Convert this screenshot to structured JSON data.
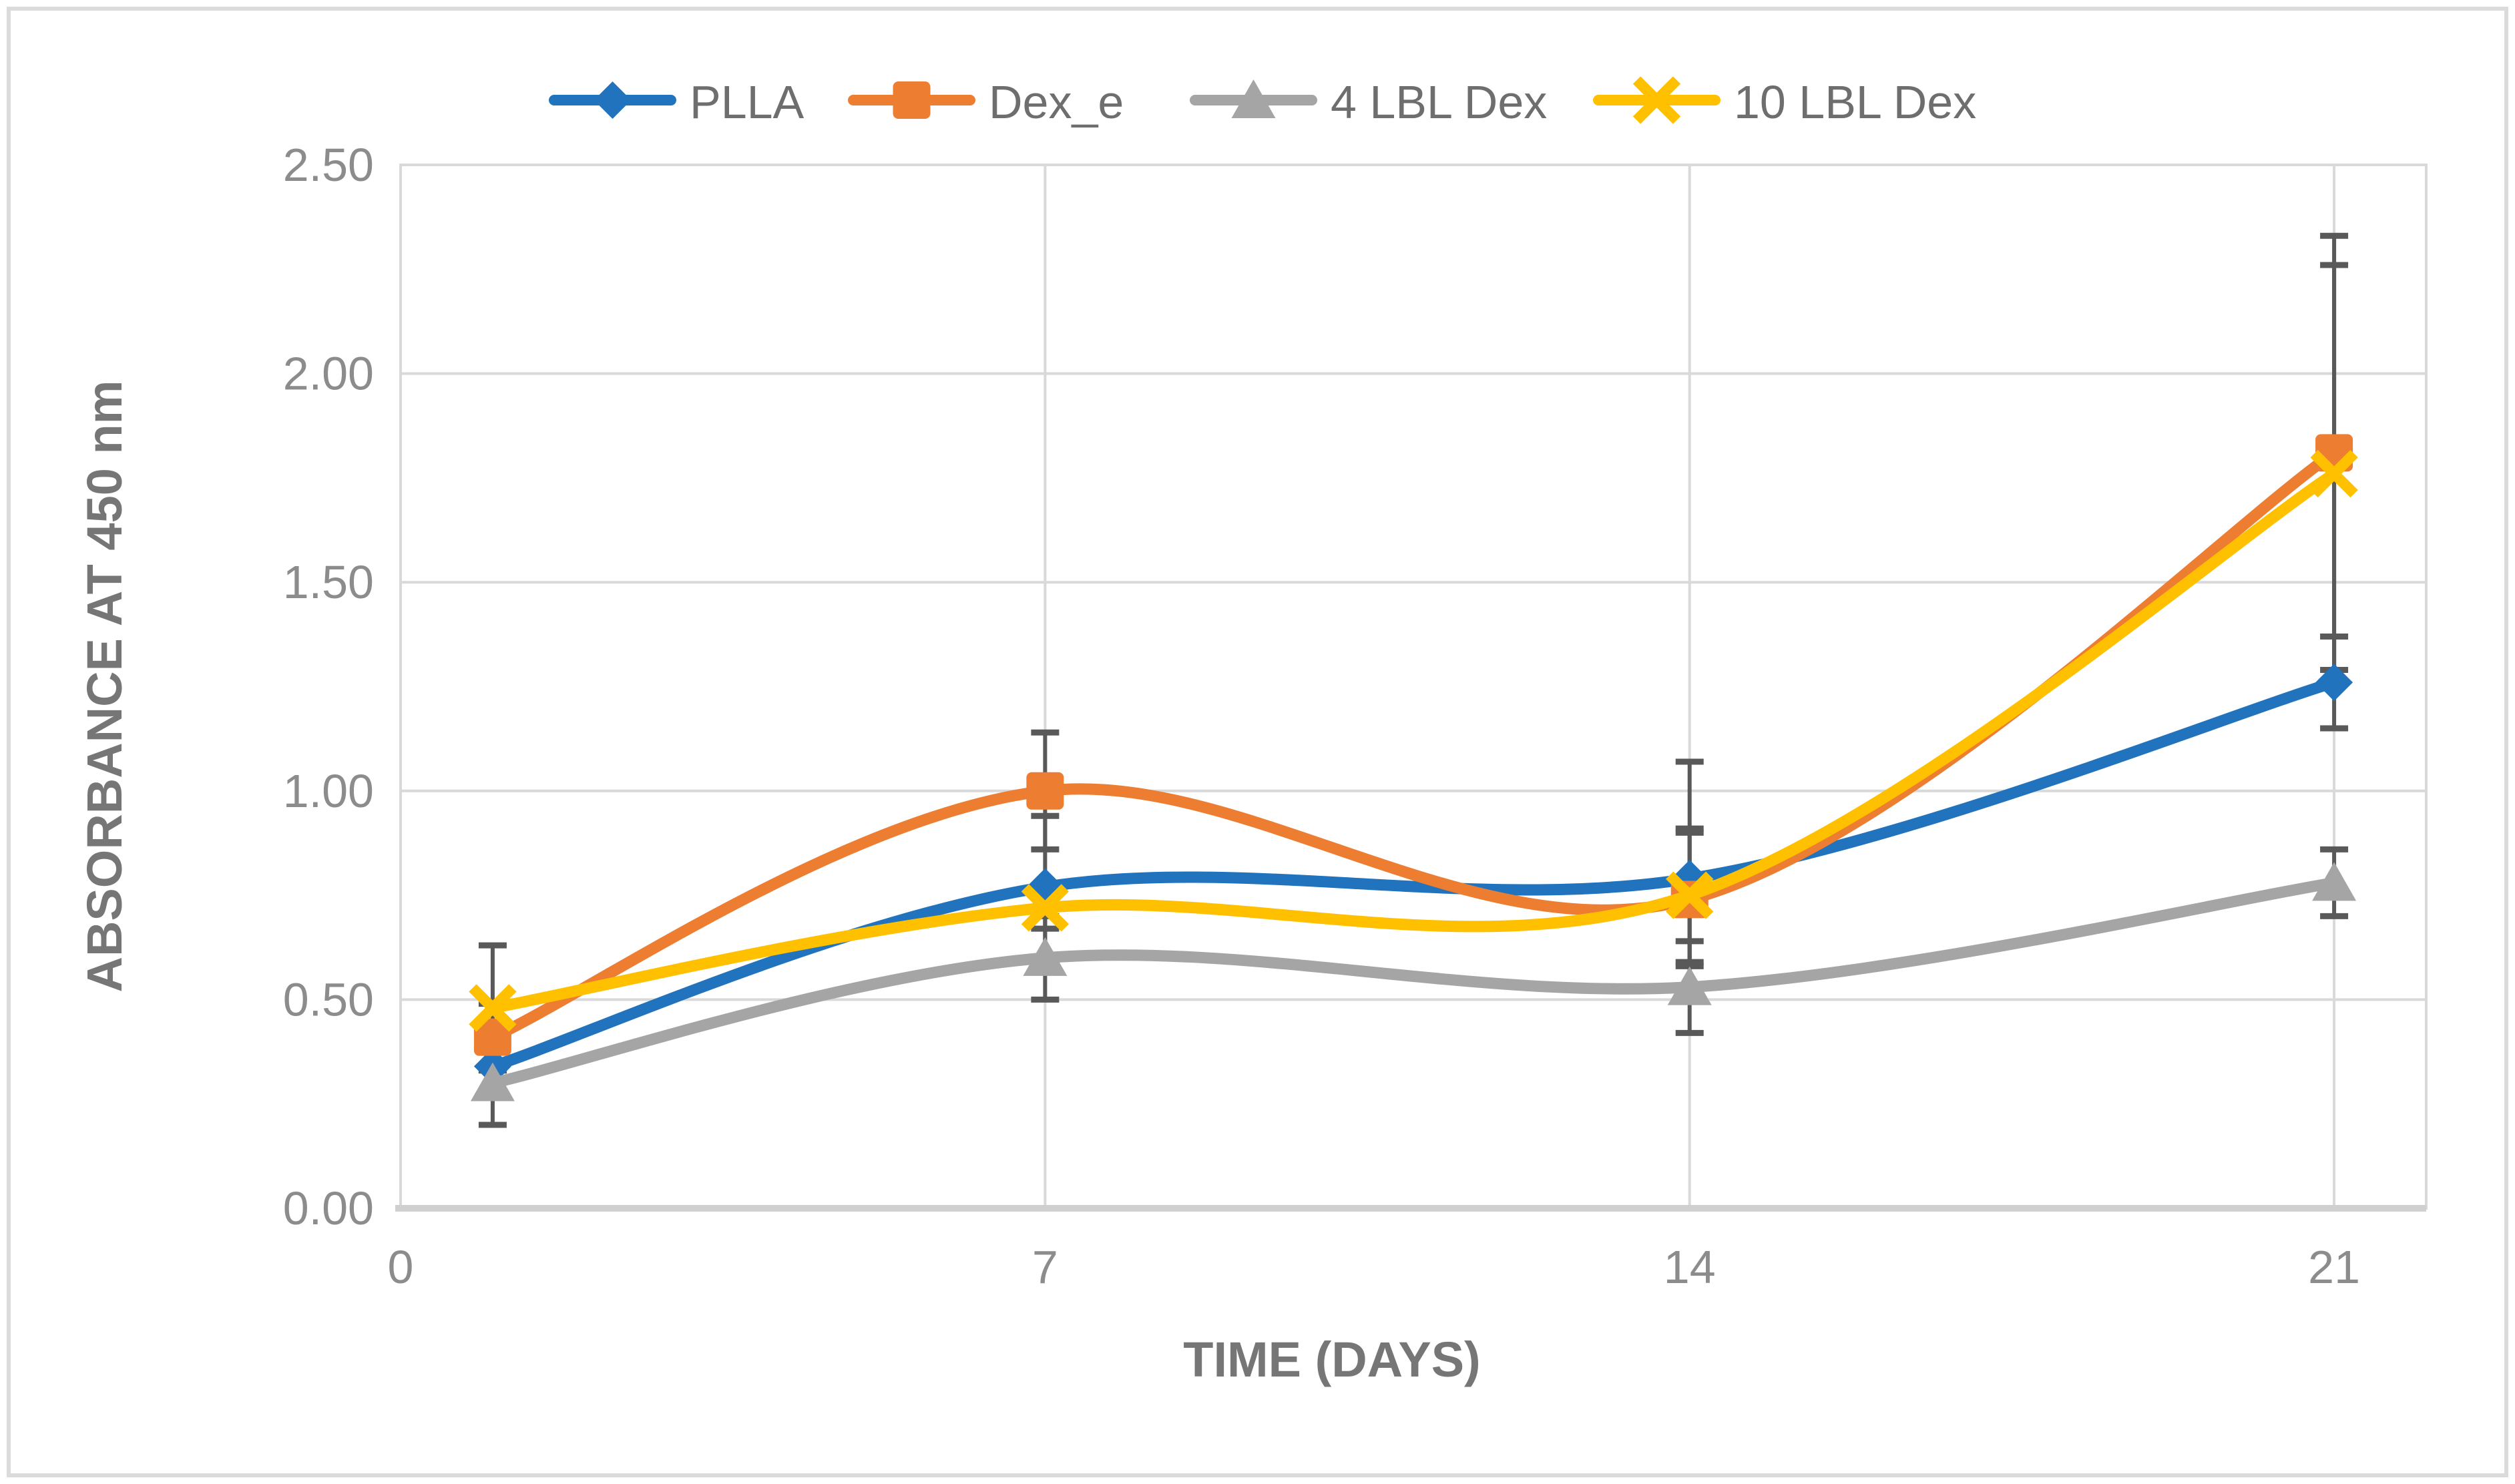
{
  "chart_data": {
    "type": "line",
    "title": "",
    "xlabel": "TIME (DAYS)",
    "ylabel": "ABSORBANCE AT  450 nm",
    "x": [
      1,
      7,
      14,
      21
    ],
    "x_ticks": [
      0,
      7,
      14,
      21
    ],
    "x_tick_labels": [
      "0",
      "7",
      "14",
      "21"
    ],
    "xlim": [
      0,
      22
    ],
    "ylim": [
      0,
      2.5
    ],
    "y_step": 0.5,
    "y_tick_labels": [
      "0.00",
      "0.50",
      "1.00",
      "1.50",
      "2.00",
      "2.50"
    ],
    "grid": true,
    "smoothed_lines": true,
    "legend_position": "top-center",
    "series": [
      {
        "name": "PLLA",
        "color": "#2173BE",
        "marker": "diamond",
        "values": [
          0.34,
          0.77,
          0.79,
          1.26
        ],
        "errors": [
          0.06,
          0.17,
          0.28,
          0.11
        ]
      },
      {
        "name": "Dex_e",
        "color": "#ED7D31",
        "marker": "square",
        "values": [
          0.41,
          1.0,
          0.74,
          1.81
        ],
        "errors": [
          0.08,
          0.14,
          0.16,
          0.52
        ]
      },
      {
        "name": "4 LBL Dex",
        "color": "#A5A5A5",
        "marker": "triangle",
        "values": [
          0.3,
          0.6,
          0.53,
          0.78
        ],
        "errors": [
          0.1,
          0.1,
          0.11,
          0.08
        ]
      },
      {
        "name": "10 LBL Dex",
        "color": "#FFC000",
        "marker": "x",
        "values": [
          0.48,
          0.72,
          0.75,
          1.76
        ],
        "errors": [
          0.15,
          0.05,
          0.16,
          0.5
        ]
      }
    ],
    "colors": {
      "error_bar": "#595959",
      "gridline": "#D9D9D9",
      "axis_line": "#D0D0D0",
      "plot_border": "#D9D9D9",
      "tick_label": "#8C8C8C",
      "axis_title": "#767676",
      "legend_text": "#6E6E6E",
      "background": "#FFFFFF"
    }
  }
}
